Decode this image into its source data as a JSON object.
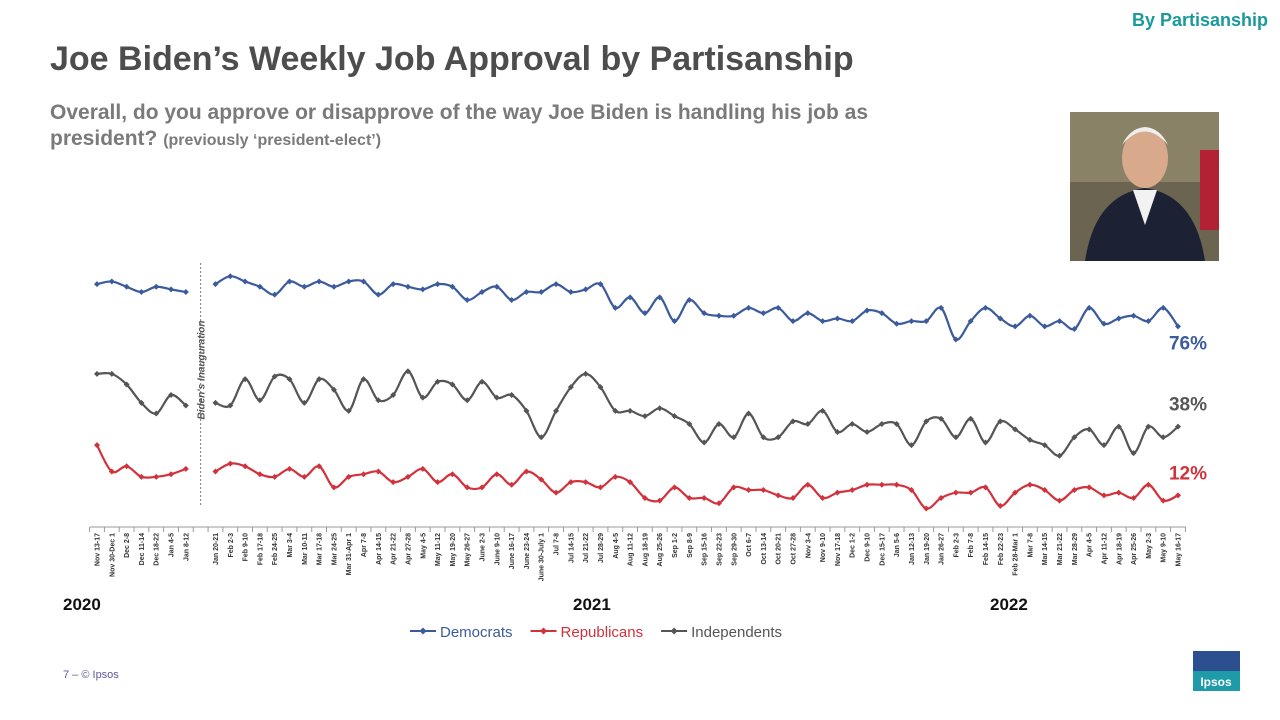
{
  "header": {
    "tag": "By Partisanship",
    "title": "Joe Biden’s Weekly Job Approval by Partisanship",
    "subtitle": "Overall, do you approve or disapprove of the way Joe Biden is handling his job as president?",
    "note": "(previously ‘president-elect’)"
  },
  "chart_data": {
    "type": "line",
    "categories": [
      "Nov 13-17",
      "Nov 30-Dec 1",
      "Dec 2-8",
      "Dec 11-14",
      "Dec 18-22",
      "Jan 4-5",
      "Jan 8-12",
      null,
      "Jan 20-21",
      "Feb 2-3",
      "Feb 9-10",
      "Feb 17-18",
      "Feb 24-25",
      "Mar 3-4",
      "Mar 10-11",
      "Mar 17-18",
      "Mar 24-25",
      "Mar 31-Apr 1",
      "Apr 7-8",
      "Apr 14-15",
      "Apr 21-22",
      "Apr 27-28",
      "May 4-5",
      "May 11-12",
      "May 19-20",
      "May 26-27",
      "June 2-3",
      "June 9-10",
      "June 16-17",
      "June 23-24",
      "June 30-July 1",
      "Jul 7-8",
      "Jul 14-15",
      "Jul 21-22",
      "Jul 28-29",
      "Aug 4-5",
      "Aug 11-12",
      "Aug 18-19",
      "Aug 25-26",
      "Sep 1-2",
      "Sep 8-9",
      "Sep 15-16",
      "Sep 22-23",
      "Sep 29-30",
      "Oct 6-7",
      "Oct 13-14",
      "Oct 20-21",
      "Oct 27-28",
      "Nov 3-4",
      "Nov 9-10",
      "Nov 17-18",
      "Dec 1-2",
      "Dec 9-10",
      "Dec 15-17",
      "Jan 5-6",
      "Jan 12-13",
      "Jan 19-20",
      "Jan 26-27",
      "Feb 2-3",
      "Feb 7-8",
      "Feb 14-15",
      "Feb 22-23",
      "Feb 28-Mar 1",
      "Mar 7-8",
      "Mar 14-15",
      "Mar 21-22",
      "Mar 28-29",
      "Apr 4-5",
      "Apr 11-12",
      "Apr 18-19",
      "Apr 25-26",
      "May 2-3",
      "May 9-10",
      "May 16-17"
    ],
    "series": [
      {
        "name": "Democrats",
        "color": "#3b5b9d",
        "values": [
          92,
          93,
          91,
          89,
          91,
          90,
          89,
          null,
          92,
          95,
          93,
          91,
          88,
          93,
          91,
          93,
          91,
          93,
          93,
          88,
          92,
          91,
          90,
          92,
          91,
          86,
          89,
          91,
          86,
          89,
          89,
          92,
          89,
          90,
          92,
          83,
          87,
          81,
          87,
          78,
          86,
          81,
          80,
          80,
          83,
          81,
          83,
          78,
          81,
          78,
          79,
          78,
          82,
          81,
          77,
          78,
          78,
          83,
          71,
          78,
          83,
          79,
          76,
          80,
          76,
          78,
          75,
          83,
          77,
          79,
          80,
          78,
          83,
          76
        ],
        "value_labels": [
          null,
          null,
          null,
          null,
          null,
          null,
          null,
          null,
          null,
          null,
          null,
          null,
          null,
          null,
          null,
          null,
          null,
          null,
          null,
          null,
          null,
          null,
          null,
          null,
          null,
          null,
          null,
          null,
          null,
          null,
          null,
          null,
          null,
          null,
          null,
          null,
          null,
          null,
          null,
          null,
          null,
          null,
          null,
          null,
          null,
          null,
          null,
          null,
          null,
          null,
          null,
          null,
          null,
          null,
          null,
          null,
          null,
          null,
          null,
          null,
          null,
          null,
          null,
          null,
          null,
          null,
          null,
          null,
          null,
          null,
          null,
          null,
          null,
          "76%"
        ]
      },
      {
        "name": "Republicans",
        "color": "#d1323b",
        "values": [
          31,
          21,
          23,
          19,
          19,
          20,
          22,
          null,
          21,
          24,
          23,
          20,
          19,
          22,
          19,
          23,
          15,
          19,
          20,
          21,
          17,
          19,
          22,
          17,
          20,
          15,
          15,
          20,
          16,
          21,
          18,
          13,
          17,
          17,
          15,
          19,
          17,
          11,
          10,
          15,
          11,
          11,
          9,
          15,
          14,
          14,
          12,
          11,
          16,
          11,
          13,
          14,
          16,
          16,
          16,
          14,
          7,
          11,
          13,
          13,
          15,
          8,
          13,
          16,
          14,
          10,
          14,
          15,
          12,
          13,
          11,
          16,
          10,
          12
        ],
        "value_labels": [
          null,
          null,
          null,
          null,
          null,
          null,
          null,
          null,
          null,
          null,
          null,
          null,
          null,
          null,
          null,
          null,
          null,
          null,
          null,
          null,
          null,
          null,
          null,
          null,
          null,
          null,
          null,
          null,
          null,
          null,
          null,
          null,
          null,
          null,
          null,
          null,
          null,
          null,
          null,
          null,
          null,
          null,
          null,
          null,
          null,
          null,
          null,
          null,
          null,
          null,
          null,
          null,
          null,
          null,
          null,
          null,
          null,
          null,
          null,
          null,
          null,
          null,
          null,
          null,
          null,
          null,
          null,
          null,
          null,
          null,
          null,
          null,
          null,
          "12%"
        ]
      },
      {
        "name": "Independents",
        "color": "#555555",
        "values": [
          58,
          58,
          54,
          47,
          43,
          50,
          46,
          null,
          47,
          46,
          56,
          48,
          57,
          56,
          47,
          56,
          52,
          44,
          56,
          48,
          50,
          59,
          49,
          55,
          54,
          48,
          55,
          49,
          50,
          44,
          34,
          44,
          53,
          58,
          53,
          44,
          44,
          42,
          45,
          42,
          39,
          32,
          39,
          34,
          43,
          34,
          34,
          40,
          39,
          44,
          36,
          39,
          36,
          39,
          39,
          31,
          40,
          41,
          34,
          41,
          32,
          40,
          37,
          33,
          31,
          27,
          34,
          37,
          31,
          38,
          28,
          38,
          34,
          38
        ],
        "value_labels": [
          null,
          null,
          null,
          null,
          null,
          null,
          null,
          null,
          null,
          null,
          null,
          null,
          null,
          null,
          null,
          null,
          null,
          null,
          null,
          null,
          null,
          null,
          null,
          null,
          null,
          null,
          null,
          null,
          null,
          null,
          null,
          null,
          null,
          null,
          null,
          null,
          null,
          null,
          null,
          null,
          null,
          null,
          null,
          null,
          null,
          null,
          null,
          null,
          null,
          null,
          null,
          null,
          null,
          null,
          null,
          null,
          null,
          null,
          null,
          null,
          null,
          null,
          null,
          null,
          null,
          null,
          null,
          null,
          null,
          null,
          null,
          null,
          null,
          "38%"
        ]
      }
    ],
    "ylim": [
      0,
      100
    ],
    "annotation": "Biden's Inauguration",
    "year_labels": [
      "2020",
      "2021",
      "2022"
    ]
  },
  "footer": {
    "page": "7 –  © Ipsos",
    "logo": "Ipsos"
  }
}
